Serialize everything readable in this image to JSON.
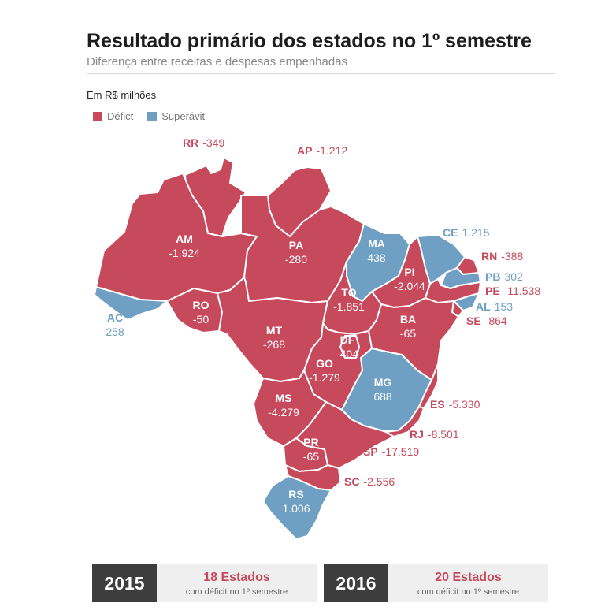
{
  "header": {
    "title": "Resultado primário dos estados no 1º semestre",
    "subtitle": "Diferença entre receitas e despesas empenhadas",
    "unit": "Em R$ milhões"
  },
  "legend": {
    "deficit_label": "Défict",
    "surplus_label": "Superávit"
  },
  "colors": {
    "deficit": "#c64a5c",
    "surplus": "#6f9fc3"
  },
  "states": [
    {
      "abbr": "RR",
      "value": "-349",
      "status": "deficit"
    },
    {
      "abbr": "AP",
      "value": "-1.212",
      "status": "deficit"
    },
    {
      "abbr": "AM",
      "value": "-1.924",
      "status": "deficit"
    },
    {
      "abbr": "PA",
      "value": "-280",
      "status": "deficit"
    },
    {
      "abbr": "AC",
      "value": "258",
      "status": "surplus"
    },
    {
      "abbr": "RO",
      "value": "-50",
      "status": "deficit"
    },
    {
      "abbr": "MT",
      "value": "-268",
      "status": "deficit"
    },
    {
      "abbr": "MA",
      "value": "438",
      "status": "surplus"
    },
    {
      "abbr": "CE",
      "value": "1.215",
      "status": "surplus"
    },
    {
      "abbr": "RN",
      "value": "-388",
      "status": "deficit"
    },
    {
      "abbr": "PB",
      "value": "302",
      "status": "surplus"
    },
    {
      "abbr": "PE",
      "value": "-11.538",
      "status": "deficit"
    },
    {
      "abbr": "AL",
      "value": "153",
      "status": "surplus"
    },
    {
      "abbr": "SE",
      "value": "-864",
      "status": "deficit"
    },
    {
      "abbr": "PI",
      "value": "-2.044",
      "status": "deficit"
    },
    {
      "abbr": "TO",
      "value": "-1.851",
      "status": "deficit"
    },
    {
      "abbr": "BA",
      "value": "-65",
      "status": "deficit"
    },
    {
      "abbr": "DF",
      "value": "-404",
      "status": "deficit"
    },
    {
      "abbr": "GO",
      "value": "-1.279",
      "status": "deficit"
    },
    {
      "abbr": "MG",
      "value": "688",
      "status": "surplus"
    },
    {
      "abbr": "MS",
      "value": "-4.279",
      "status": "deficit"
    },
    {
      "abbr": "ES",
      "value": "-5.330",
      "status": "deficit"
    },
    {
      "abbr": "RJ",
      "value": "-8.501",
      "status": "deficit"
    },
    {
      "abbr": "SP",
      "value": "-17.519",
      "status": "deficit"
    },
    {
      "abbr": "PR",
      "value": "-65",
      "status": "deficit"
    },
    {
      "abbr": "SC",
      "value": "-2.556",
      "status": "deficit"
    },
    {
      "abbr": "RS",
      "value": "1.006",
      "status": "surplus"
    }
  ],
  "footer": [
    {
      "year": "2015",
      "count": "18 Estados",
      "note": "com déficit no 1º semestre"
    },
    {
      "year": "2016",
      "count": "20 Estados",
      "note": "com déficit no 1º semestre"
    }
  ]
}
